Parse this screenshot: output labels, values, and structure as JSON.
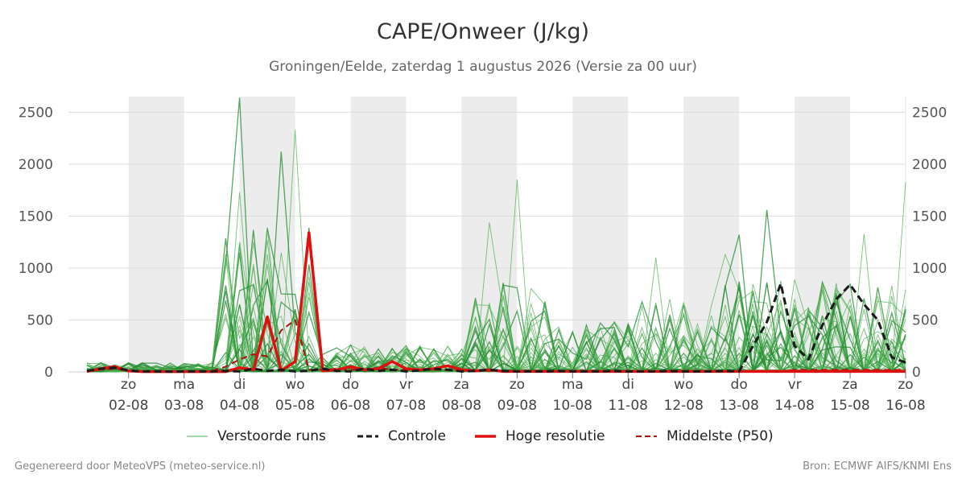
{
  "title": "CAPE/Onweer (J/kg)",
  "subtitle": "Groningen/Eelde, zaterdag  1 augustus 2026 (Versie za 00 uur)",
  "footer_left": "Gegenereerd door MeteoVPS (meteo-service.nl)",
  "footer_right": "Bron: ECMWF AIFS/KNMI Ens",
  "colors": {
    "ensemble": "#2e9e3e",
    "control": "#1a1a1a",
    "hires": "#e01010",
    "median": "#b01010",
    "shade": "#ececec",
    "grid": "#dddddd"
  },
  "legend": [
    {
      "label": "Verstoorde runs",
      "style": "thin-green"
    },
    {
      "label": "Controle",
      "style": "dash-black"
    },
    {
      "label": "Hoge resolutie",
      "style": "thick-red"
    },
    {
      "label": "Middelste (P50)",
      "style": "dash-darkred"
    }
  ],
  "chart_data": {
    "type": "line",
    "title": "CAPE/Onweer (J/kg)",
    "ylabel": "",
    "xlabel": "",
    "x_unit": "days since 1 aug 2026 00 UTC",
    "xlim": [
      -0.7,
      15.0
    ],
    "ylim": [
      0,
      2650
    ],
    "yticks": [
      0,
      500,
      1000,
      1500,
      2000,
      2500
    ],
    "x_ticks": [
      {
        "x": 0.0,
        "day": "zo",
        "date": "02-08"
      },
      {
        "x": 1.0,
        "day": "ma",
        "date": "03-08"
      },
      {
        "x": 2.0,
        "day": "di",
        "date": "04-08"
      },
      {
        "x": 3.0,
        "day": "wo",
        "date": "05-08"
      },
      {
        "x": 4.0,
        "day": "do",
        "date": "06-08"
      },
      {
        "x": 5.0,
        "day": "vr",
        "date": "07-08"
      },
      {
        "x": 6.0,
        "day": "za",
        "date": "08-08"
      },
      {
        "x": 7.0,
        "day": "zo",
        "date": "09-08"
      },
      {
        "x": 8.0,
        "day": "ma",
        "date": "10-08"
      },
      {
        "x": 9.0,
        "day": "di",
        "date": "11-08"
      },
      {
        "x": 10.0,
        "day": "wo",
        "date": "12-08"
      },
      {
        "x": 11.0,
        "day": "do",
        "date": "13-08"
      },
      {
        "x": 12.0,
        "day": "vr",
        "date": "14-08"
      },
      {
        "x": 13.0,
        "day": "za",
        "date": "15-08"
      },
      {
        "x": 14.0,
        "day": "zo",
        "date": "16-08"
      }
    ],
    "shaded_days": [
      [
        0.0,
        1.0
      ],
      [
        2.0,
        3.0
      ],
      [
        4.0,
        5.0
      ],
      [
        6.0,
        7.0
      ],
      [
        8.0,
        9.0
      ],
      [
        10.0,
        11.0
      ],
      [
        12.0,
        13.0
      ]
    ],
    "grid": true,
    "series_control": {
      "name": "Controle",
      "x": [
        -0.75,
        -0.5,
        -0.25,
        0,
        0.25,
        0.5,
        0.75,
        1,
        1.25,
        1.5,
        1.75,
        2,
        2.25,
        2.5,
        2.75,
        3,
        3.25,
        3.5,
        3.75,
        4,
        4.25,
        4.5,
        4.75,
        5,
        5.25,
        5.5,
        5.75,
        6,
        6.25,
        6.5,
        6.75,
        7,
        7.25,
        7.5,
        7.75,
        8,
        8.25,
        8.5,
        8.75,
        9,
        9.25,
        9.5,
        9.75,
        10,
        10.25,
        10.5,
        10.75,
        11,
        11.25,
        11.5,
        11.75,
        12,
        12.25,
        12.5,
        12.75,
        13,
        13.25,
        13.5,
        13.75,
        14
      ],
      "y": [
        10,
        30,
        40,
        15,
        5,
        5,
        3,
        5,
        5,
        5,
        10,
        5,
        30,
        10,
        20,
        5,
        10,
        30,
        10,
        5,
        30,
        10,
        20,
        5,
        15,
        30,
        20,
        5,
        10,
        20,
        10,
        5,
        5,
        5,
        10,
        5,
        5,
        5,
        10,
        5,
        5,
        5,
        10,
        5,
        5,
        5,
        10,
        5,
        250,
        480,
        850,
        250,
        120,
        450,
        700,
        840,
        650,
        500,
        140,
        90
      ]
    },
    "series_hires": {
      "name": "Hoge resolutie",
      "x": [
        -0.75,
        -0.5,
        -0.25,
        0,
        0.25,
        0.5,
        0.75,
        1,
        1.25,
        1.5,
        1.75,
        2,
        2.25,
        2.5,
        2.75,
        3,
        3.25,
        3.5,
        3.75,
        4,
        4.25,
        4.5,
        4.75,
        5,
        5.25,
        5.5,
        5.75,
        6,
        6.25,
        6.5,
        6.75,
        7,
        7.25,
        7.5,
        7.75,
        8,
        8.25,
        8.5,
        8.75,
        9,
        9.25,
        9.5,
        9.75,
        10,
        10.25,
        10.5,
        10.75,
        11,
        11.25,
        11.5,
        11.75,
        12,
        12.25,
        12.5,
        12.75,
        13,
        13.25,
        13.5,
        13.75,
        14
      ],
      "y": [
        5,
        30,
        50,
        10,
        3,
        3,
        3,
        3,
        3,
        3,
        3,
        40,
        20,
        530,
        10,
        100,
        1340,
        10,
        20,
        50,
        20,
        30,
        100,
        30,
        20,
        30,
        60,
        20,
        10,
        20,
        5,
        5,
        5,
        5,
        5,
        5,
        5,
        5,
        5,
        5,
        5,
        5,
        5,
        5,
        5,
        5,
        5,
        5,
        5,
        5,
        5,
        5,
        5,
        5,
        5,
        5,
        5,
        5,
        5,
        5
      ]
    },
    "series_median": {
      "name": "Middelste (P50)",
      "x": [
        -0.75,
        -0.5,
        -0.25,
        0,
        0.25,
        0.5,
        0.75,
        1,
        1.25,
        1.5,
        1.75,
        2,
        2.25,
        2.5,
        2.75,
        3,
        3.25,
        3.5,
        3.75,
        4,
        4.25,
        4.5,
        4.75,
        5,
        5.25,
        5.5,
        5.75,
        6,
        6.25,
        6.5,
        6.75,
        7,
        7.25,
        7.5,
        7.75,
        8,
        8.25,
        8.5,
        8.75,
        9,
        9.25,
        9.5,
        9.75,
        10,
        10.25,
        10.5,
        10.75,
        11,
        11.25,
        11.5,
        11.75,
        12,
        12.25,
        12.5,
        12.75,
        13,
        13.25,
        13.5,
        13.75,
        14
      ],
      "y": [
        10,
        20,
        30,
        10,
        5,
        3,
        3,
        3,
        5,
        10,
        50,
        120,
        170,
        150,
        400,
        500,
        20,
        20,
        30,
        20,
        20,
        40,
        20,
        20,
        20,
        20,
        20,
        10,
        10,
        10,
        10,
        10,
        10,
        10,
        10,
        10,
        10,
        10,
        10,
        10,
        10,
        10,
        10,
        10,
        10,
        10,
        10,
        10,
        10,
        10,
        10,
        20,
        20,
        20,
        20,
        20,
        20,
        20,
        20,
        20
      ]
    },
    "ensemble_peaks": [
      {
        "x": 2.0,
        "y": 2640
      },
      {
        "x": 2.0,
        "y": 1730
      },
      {
        "x": 3.0,
        "y": 2330
      },
      {
        "x": 2.75,
        "y": 2120
      },
      {
        "x": 7.0,
        "y": 1850
      },
      {
        "x": 6.5,
        "y": 1440
      },
      {
        "x": 11.5,
        "y": 1560
      },
      {
        "x": 14.0,
        "y": 1830
      },
      {
        "x": 13.25,
        "y": 1330
      },
      {
        "x": 11.0,
        "y": 1320
      },
      {
        "x": 10.75,
        "y": 1130
      },
      {
        "x": 9.5,
        "y": 1100
      },
      {
        "x": 14.25,
        "y": 1040
      }
    ]
  }
}
